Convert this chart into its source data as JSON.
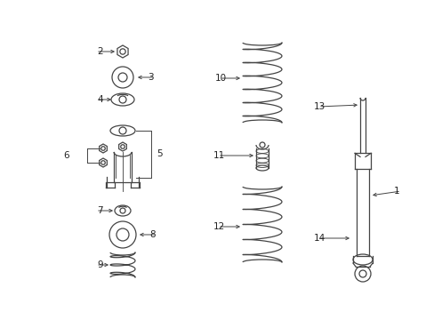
{
  "background_color": "#ffffff",
  "line_color": "#444444",
  "label_color": "#222222",
  "fig_width": 4.89,
  "fig_height": 3.6,
  "dpi": 100,
  "label_fontsize": 7.5,
  "lw": 0.9
}
